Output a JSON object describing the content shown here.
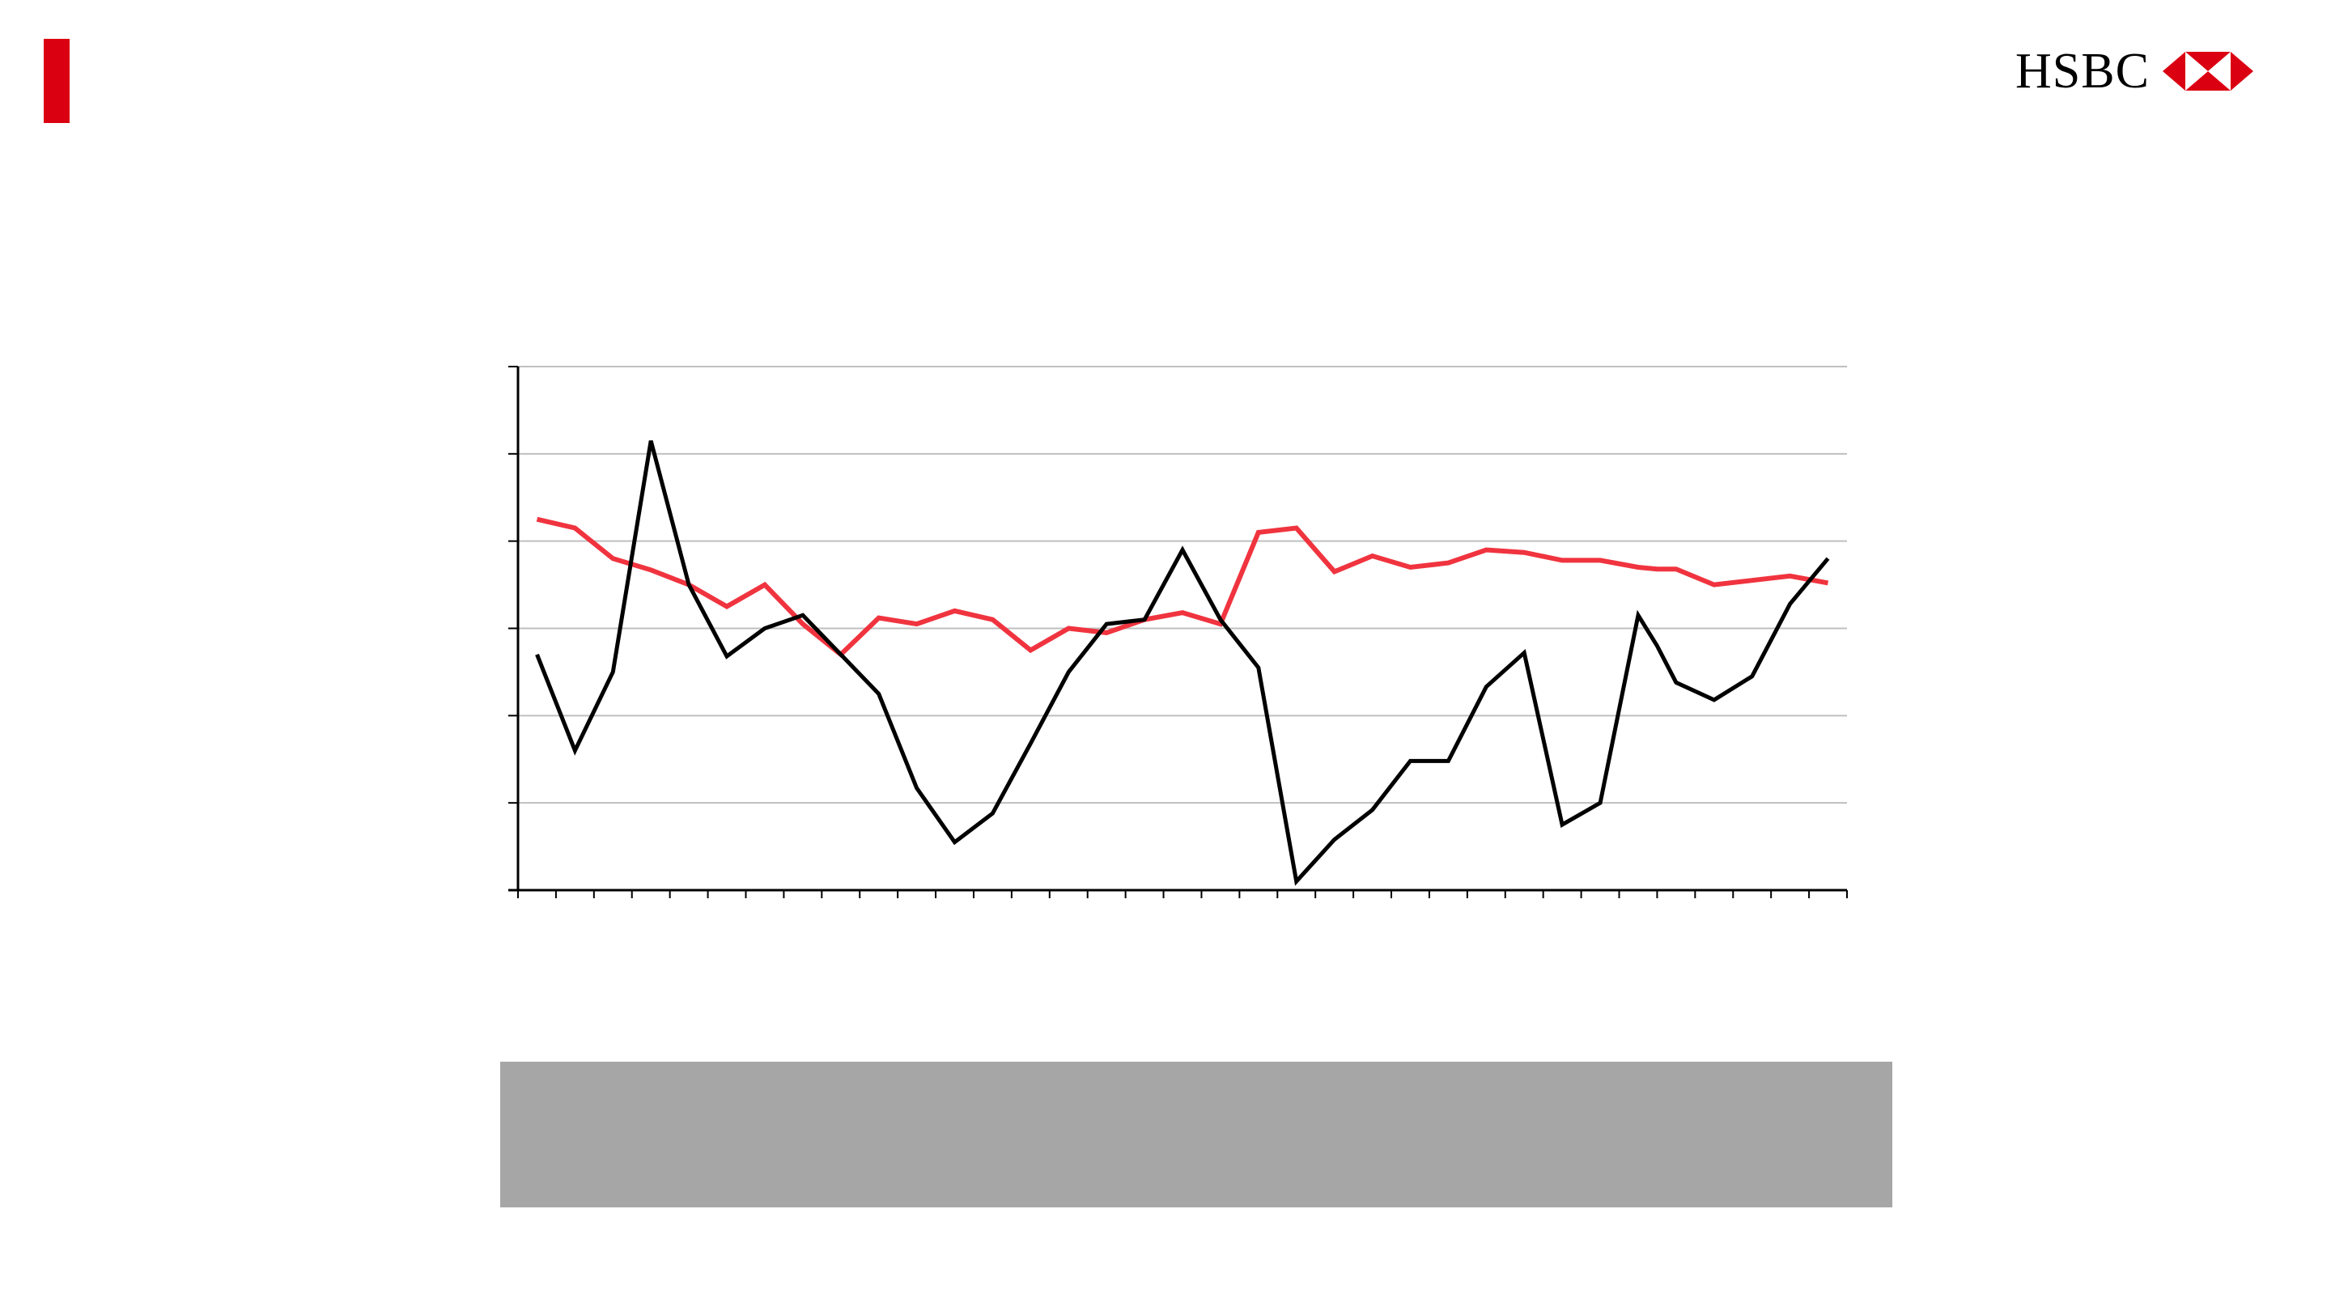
{
  "colors": {
    "accent": "#DB0011",
    "series_red": "#F0343F",
    "series_black": "#000000",
    "gridline": "#BFBFBF",
    "axis": "#000000",
    "panel_grey": "#A6A6A6"
  },
  "logo": {
    "text": "HSBC",
    "icon": "hsbc-hexagon-icon"
  },
  "chart_data": {
    "type": "line",
    "title": "",
    "xlabel": "",
    "ylabel": "",
    "ylim": [
      0,
      6
    ],
    "y_gridlines": [
      1,
      2,
      3,
      4,
      5,
      6
    ],
    "grid": true,
    "x_tick_count": 35,
    "x": [
      1,
      2,
      3,
      4,
      5,
      6,
      7,
      8,
      9,
      10,
      11,
      12,
      13,
      14,
      15,
      16,
      17,
      18,
      19,
      20,
      21,
      22,
      23,
      24,
      25,
      26,
      27,
      28,
      29,
      30,
      30.5,
      31,
      32,
      33,
      34,
      35
    ],
    "series": [
      {
        "color": "#F0343F",
        "values": [
          4.25,
          4.15,
          3.8,
          3.67,
          3.5,
          3.25,
          3.5,
          3.05,
          2.7,
          3.12,
          3.05,
          3.2,
          3.1,
          2.75,
          3.0,
          2.95,
          3.1,
          3.18,
          3.05,
          4.1,
          4.15,
          3.65,
          3.83,
          3.7,
          3.75,
          3.9,
          3.87,
          3.78,
          3.78,
          3.7,
          3.68,
          3.68,
          3.5,
          3.55,
          3.6,
          3.52
        ]
      },
      {
        "color": "#000000",
        "values": [
          2.7,
          1.6,
          2.5,
          5.15,
          3.5,
          2.68,
          3.0,
          3.15,
          2.7,
          2.25,
          1.17,
          0.55,
          0.88,
          1.68,
          2.5,
          3.05,
          3.1,
          3.9,
          3.1,
          2.55,
          0.1,
          0.58,
          0.92,
          1.48,
          1.48,
          2.33,
          2.72,
          0.75,
          1.0,
          3.15,
          2.8,
          2.38,
          2.18,
          2.45,
          3.28,
          3.8
        ]
      }
    ]
  }
}
